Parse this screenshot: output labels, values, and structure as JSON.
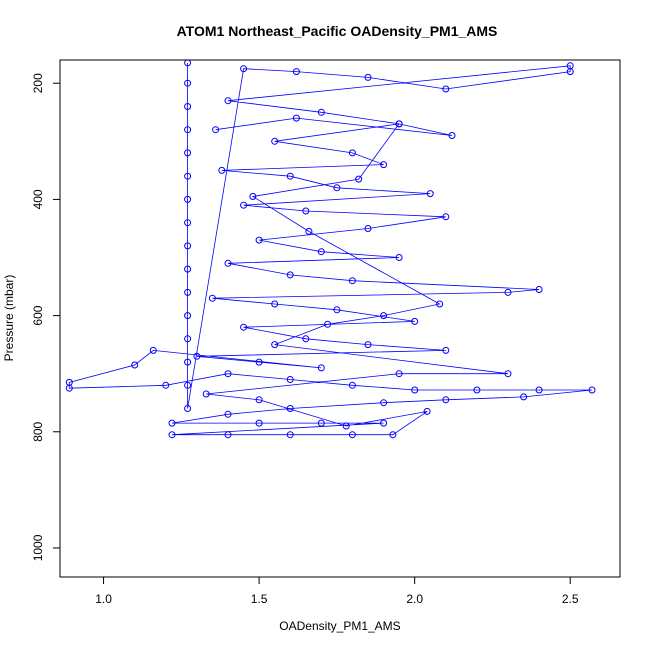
{
  "chart_data": {
    "type": "scatter",
    "title": "ATOM1 Northeast_Pacific OADensity_PM1_AMS",
    "xlabel": "OADensity_PM1_AMS",
    "ylabel": "Pressure (mbar)",
    "xlim": [
      0.86,
      2.66
    ],
    "ylim": [
      1050,
      160
    ],
    "y_reversed": true,
    "x_ticks": [
      1.0,
      1.5,
      2.0,
      2.5
    ],
    "x_tick_labels": [
      "1.0",
      "1.5",
      "2.0",
      "2.5"
    ],
    "y_ticks": [
      200,
      400,
      600,
      800,
      1000
    ],
    "y_tick_labels": [
      "200",
      "400",
      "600",
      "800",
      "1000"
    ],
    "grid": false,
    "legend": "none",
    "series": [
      {
        "color": "#0000ff",
        "marker": "open-circle",
        "connected": true,
        "points": [
          [
            1.27,
            165
          ],
          [
            1.27,
            200
          ],
          [
            1.27,
            240
          ],
          [
            1.27,
            280
          ],
          [
            1.27,
            320
          ],
          [
            1.27,
            360
          ],
          [
            1.27,
            400
          ],
          [
            1.27,
            440
          ],
          [
            1.27,
            480
          ],
          [
            1.27,
            520
          ],
          [
            1.27,
            560
          ],
          [
            1.27,
            600
          ],
          [
            1.27,
            640
          ],
          [
            1.27,
            680
          ],
          [
            1.27,
            720
          ],
          [
            1.27,
            760
          ],
          [
            1.45,
            175
          ],
          [
            1.62,
            180
          ],
          [
            1.85,
            190
          ],
          [
            2.1,
            210
          ],
          [
            2.5,
            180
          ],
          [
            2.5,
            170
          ],
          [
            1.4,
            230
          ],
          [
            1.7,
            250
          ],
          [
            1.95,
            270
          ],
          [
            1.55,
            300
          ],
          [
            1.8,
            320
          ],
          [
            1.9,
            340
          ],
          [
            1.38,
            350
          ],
          [
            1.6,
            360
          ],
          [
            1.75,
            380
          ],
          [
            2.05,
            390
          ],
          [
            1.45,
            410
          ],
          [
            1.65,
            420
          ],
          [
            2.1,
            430
          ],
          [
            1.85,
            450
          ],
          [
            1.5,
            470
          ],
          [
            1.7,
            490
          ],
          [
            1.95,
            500
          ],
          [
            1.4,
            510
          ],
          [
            1.6,
            530
          ],
          [
            1.8,
            540
          ],
          [
            2.4,
            555
          ],
          [
            2.3,
            560
          ],
          [
            1.35,
            570
          ],
          [
            1.55,
            580
          ],
          [
            1.75,
            590
          ],
          [
            2.0,
            610
          ],
          [
            1.45,
            620
          ],
          [
            1.65,
            640
          ],
          [
            1.85,
            650
          ],
          [
            2.1,
            660
          ],
          [
            1.3,
            670
          ],
          [
            1.5,
            680
          ],
          [
            1.7,
            690
          ],
          [
            1.16,
            660
          ],
          [
            1.1,
            685
          ],
          [
            0.89,
            715
          ],
          [
            0.89,
            725
          ],
          [
            1.2,
            720
          ],
          [
            1.4,
            700
          ],
          [
            1.6,
            710
          ],
          [
            1.8,
            720
          ],
          [
            2.0,
            728
          ],
          [
            2.2,
            728
          ],
          [
            2.4,
            728
          ],
          [
            2.57,
            728
          ],
          [
            2.35,
            740
          ],
          [
            2.1,
            745
          ],
          [
            1.9,
            750
          ],
          [
            1.6,
            760
          ],
          [
            1.4,
            770
          ],
          [
            1.22,
            785
          ],
          [
            1.5,
            785
          ],
          [
            1.7,
            785
          ],
          [
            1.9,
            785
          ],
          [
            1.22,
            805
          ],
          [
            1.4,
            805
          ],
          [
            1.6,
            805
          ],
          [
            1.8,
            805
          ],
          [
            1.93,
            805
          ],
          [
            2.04,
            765
          ],
          [
            1.78,
            790
          ],
          [
            1.5,
            745
          ],
          [
            1.33,
            735
          ],
          [
            1.95,
            700
          ],
          [
            2.3,
            700
          ],
          [
            1.55,
            650
          ],
          [
            1.72,
            615
          ],
          [
            1.9,
            600
          ],
          [
            2.08,
            580
          ],
          [
            1.66,
            455
          ],
          [
            1.48,
            395
          ],
          [
            1.82,
            365
          ],
          [
            1.95,
            270
          ],
          [
            2.12,
            290
          ],
          [
            1.62,
            260
          ],
          [
            1.36,
            280
          ]
        ]
      }
    ]
  }
}
